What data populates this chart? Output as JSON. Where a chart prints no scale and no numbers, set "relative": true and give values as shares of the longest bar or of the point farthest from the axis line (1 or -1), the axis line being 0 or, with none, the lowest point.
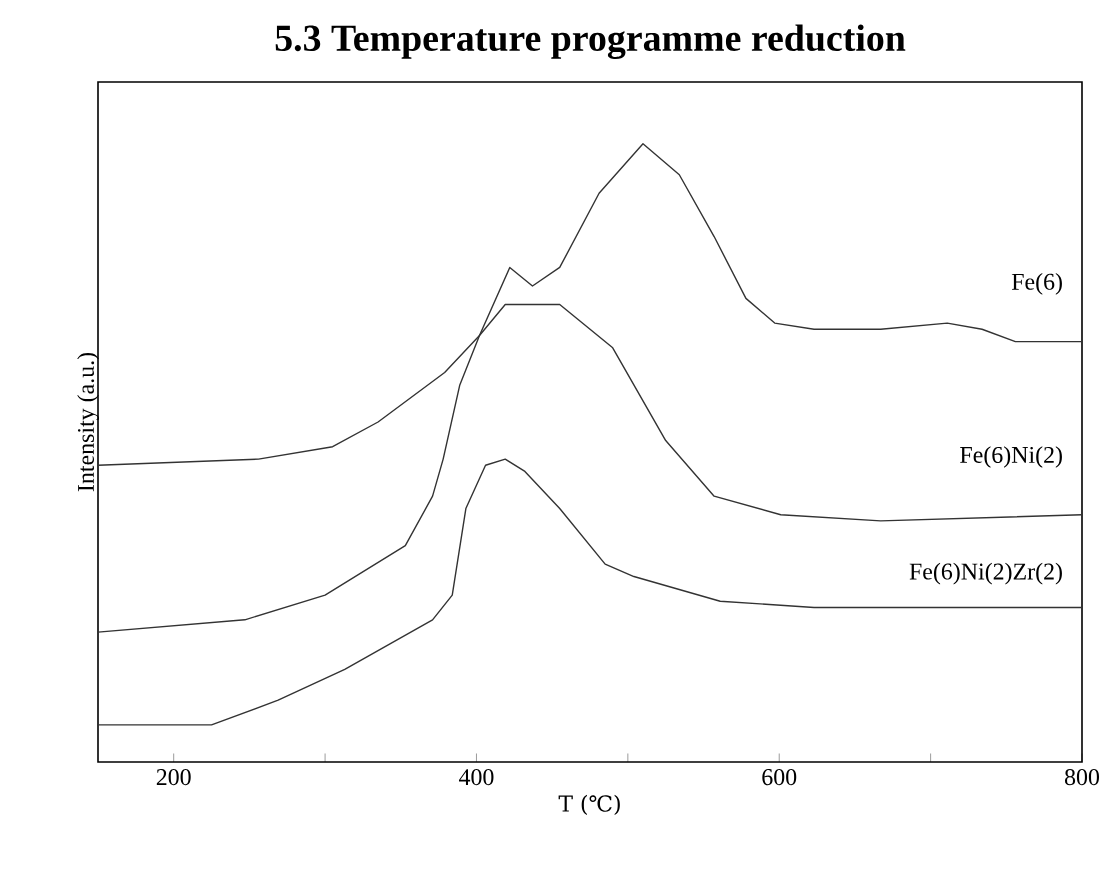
{
  "chart_data": {
    "type": "line",
    "title": "5.3 Temperature programme reduction",
    "xlabel": "T (℃)",
    "ylabel": "Intensity (a.u.)",
    "relative": true,
    "xlim": [
      150,
      800
    ],
    "xticks": [
      200,
      {
        "value": 300,
        "label": null
      },
      400,
      {
        "value": 500,
        "label": null
      },
      600,
      {
        "value": 700,
        "label": null
      },
      800
    ],
    "grid": false,
    "legend": false,
    "marker": "none",
    "line_style": "solid",
    "series": [
      {
        "name": "Fe(6)",
        "color": "#333333",
        "x": [
          150,
          256,
          305,
          335,
          379,
          402,
          422,
          437,
          455,
          481,
          510,
          534,
          557,
          578,
          597,
          623,
          667,
          711,
          734,
          756,
          800
        ],
        "values": [
          0.48,
          0.49,
          0.51,
          0.55,
          0.63,
          0.69,
          0.8,
          0.77,
          0.8,
          0.92,
          1.0,
          0.95,
          0.85,
          0.75,
          0.71,
          0.7,
          0.7,
          0.71,
          0.7,
          0.68,
          0.68
        ]
      },
      {
        "name": "Fe(6)Ni(2)",
        "color": "#333333",
        "x": [
          150,
          247,
          300,
          353,
          371,
          378,
          389,
          402,
          419,
          437,
          455,
          490,
          525,
          557,
          601,
          667,
          800
        ],
        "values": [
          0.21,
          0.23,
          0.27,
          0.35,
          0.43,
          0.49,
          0.61,
          0.69,
          0.74,
          0.74,
          0.74,
          0.67,
          0.52,
          0.43,
          0.4,
          0.39,
          0.4
        ]
      },
      {
        "name": "Fe(6)Ni(2)Zr(2)",
        "color": "#333333",
        "x": [
          150,
          225,
          269,
          313,
          371,
          384,
          393,
          406,
          419,
          432,
          455,
          485,
          504,
          561,
          623,
          800
        ],
        "values": [
          0.06,
          0.06,
          0.1,
          0.15,
          0.23,
          0.27,
          0.41,
          0.48,
          0.49,
          0.47,
          0.41,
          0.32,
          0.3,
          0.26,
          0.25,
          0.25
        ]
      }
    ]
  }
}
